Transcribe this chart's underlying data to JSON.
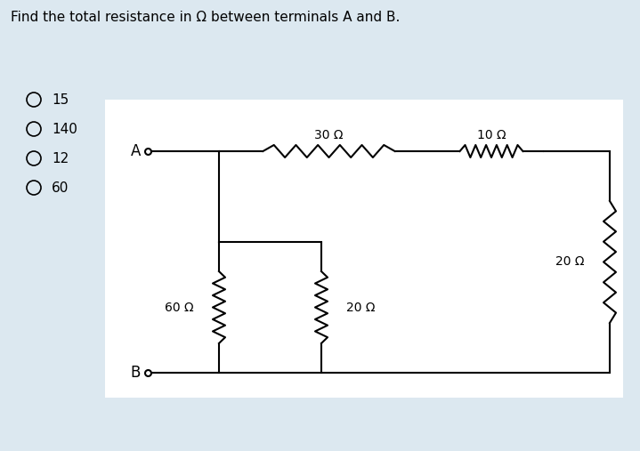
{
  "title": "Find the total resistance in Ω between terminals A and B.",
  "background_color": "#dce8f0",
  "circuit_bg": "#ffffff",
  "title_fontsize": 11,
  "options": [
    "15",
    "140",
    "12",
    "60"
  ],
  "label_30": "30 Ω",
  "label_10": "10 Ω",
  "label_20r": "20 Ω",
  "label_60": "60 Ω",
  "label_20m": "20 Ω"
}
